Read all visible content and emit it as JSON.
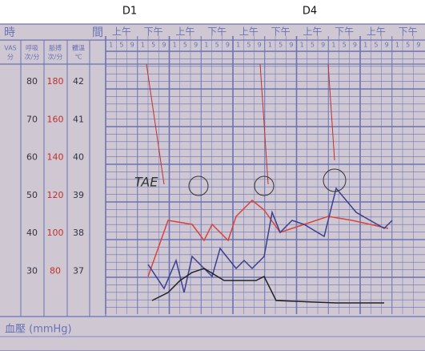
{
  "header": {
    "marks": [
      "D1",
      "D4"
    ],
    "time": "時",
    "interval": "間",
    "am": "上午",
    "pm": "下午",
    "hours": [
      "1",
      "5",
      "9"
    ]
  },
  "columns": [
    {
      "title": "VAS",
      "unit": "分"
    },
    {
      "title": "呼吸",
      "unit": "次/分"
    },
    {
      "title": "脈搏",
      "unit": "次/分"
    },
    {
      "title": "體溫",
      "unit": "℃"
    }
  ],
  "scale": [
    [
      80,
      180,
      42
    ],
    [
      70,
      160,
      41
    ],
    [
      60,
      140,
      40
    ],
    [
      50,
      120,
      39
    ],
    [
      40,
      100,
      38
    ],
    [
      30,
      80,
      37
    ]
  ],
  "blood_pressure": "血壓 (mmHg)",
  "notes": [
    "TAE"
  ]
}
